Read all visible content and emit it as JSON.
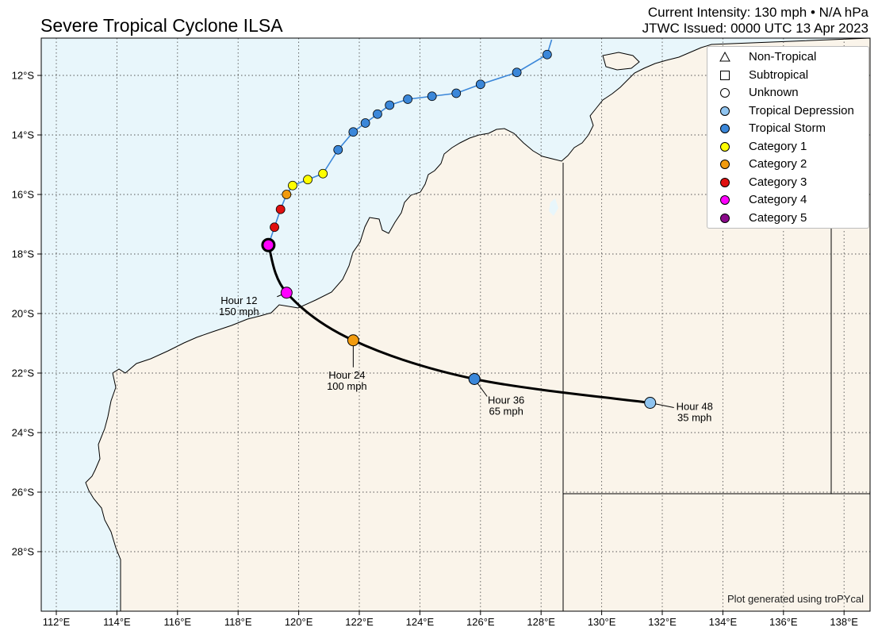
{
  "header": {
    "title": "Severe Tropical Cyclone ILSA",
    "intensity": "Current Intensity: 130 mph • N/A hPa",
    "issued": "JTWC Issued: 0000 UTC 13 Apr 2023"
  },
  "map": {
    "lon_ticks": [
      "112°E",
      "114°E",
      "116°E",
      "118°E",
      "120°E",
      "122°E",
      "124°E",
      "126°E",
      "128°E",
      "130°E",
      "132°E",
      "134°E",
      "136°E",
      "138°E"
    ],
    "lat_ticks": [
      "12°S",
      "14°S",
      "16°S",
      "18°S",
      "20°S",
      "22°S",
      "24°S",
      "26°S",
      "28°S"
    ],
    "ocean_color": "#e8f6fb",
    "land_color": "#faf4ea"
  },
  "legend": {
    "items": [
      {
        "label": "Non-Tropical",
        "shape": "triangle",
        "color": "#ffffff"
      },
      {
        "label": "Subtropical",
        "shape": "square",
        "color": "#ffffff"
      },
      {
        "label": "Unknown",
        "shape": "circle",
        "color": "#ffffff"
      },
      {
        "label": "Tropical Depression",
        "shape": "circle",
        "color": "#8fc4f0"
      },
      {
        "label": "Tropical Storm",
        "shape": "circle",
        "color": "#3b87d9"
      },
      {
        "label": "Category 1",
        "shape": "circle",
        "color": "#ffff00"
      },
      {
        "label": "Category 2",
        "shape": "circle",
        "color": "#f29b0e"
      },
      {
        "label": "Category 3",
        "shape": "circle",
        "color": "#e01010"
      },
      {
        "label": "Category 4",
        "shape": "circle",
        "color": "#ff00ff"
      },
      {
        "label": "Category 5",
        "shape": "circle",
        "color": "#8b0a8b"
      }
    ]
  },
  "track": {
    "past": [
      {
        "lon": 128.2,
        "lat": 11.3,
        "cat": "Tropical Storm"
      },
      {
        "lon": 127.2,
        "lat": 11.9,
        "cat": "Tropical Storm"
      },
      {
        "lon": 126.0,
        "lat": 12.3,
        "cat": "Tropical Storm"
      },
      {
        "lon": 125.2,
        "lat": 12.6,
        "cat": "Tropical Storm"
      },
      {
        "lon": 124.4,
        "lat": 12.7,
        "cat": "Tropical Storm"
      },
      {
        "lon": 123.6,
        "lat": 12.8,
        "cat": "Tropical Storm"
      },
      {
        "lon": 123.0,
        "lat": 13.0,
        "cat": "Tropical Storm"
      },
      {
        "lon": 122.6,
        "lat": 13.3,
        "cat": "Tropical Storm"
      },
      {
        "lon": 122.2,
        "lat": 13.6,
        "cat": "Tropical Storm"
      },
      {
        "lon": 121.8,
        "lat": 13.9,
        "cat": "Tropical Storm"
      },
      {
        "lon": 121.3,
        "lat": 14.5,
        "cat": "Tropical Storm"
      },
      {
        "lon": 120.8,
        "lat": 15.3,
        "cat": "Category 1"
      },
      {
        "lon": 120.3,
        "lat": 15.5,
        "cat": "Category 1"
      },
      {
        "lon": 119.8,
        "lat": 15.7,
        "cat": "Category 1"
      },
      {
        "lon": 119.6,
        "lat": 16.0,
        "cat": "Category 2"
      },
      {
        "lon": 119.4,
        "lat": 16.5,
        "cat": "Category 3"
      },
      {
        "lon": 119.2,
        "lat": 17.1,
        "cat": "Category 3"
      }
    ],
    "current": {
      "lon": 119.0,
      "lat": 17.7,
      "cat": "Category 4"
    },
    "forecast": [
      {
        "hour": "Hour 12",
        "wind": "150 mph",
        "lon": 119.6,
        "lat": 19.3,
        "cat": "Category 4"
      },
      {
        "hour": "Hour 24",
        "wind": "100 mph",
        "lon": 121.8,
        "lat": 20.9,
        "cat": "Category 2"
      },
      {
        "hour": "Hour 36",
        "wind": "65 mph",
        "lon": 125.8,
        "lat": 22.2,
        "cat": "Tropical Storm"
      },
      {
        "hour": "Hour 48",
        "wind": "35 mph",
        "lon": 131.6,
        "lat": 23.0,
        "cat": "Tropical Depression"
      }
    ]
  },
  "footer": {
    "credit": "Plot generated using troPYcal"
  }
}
